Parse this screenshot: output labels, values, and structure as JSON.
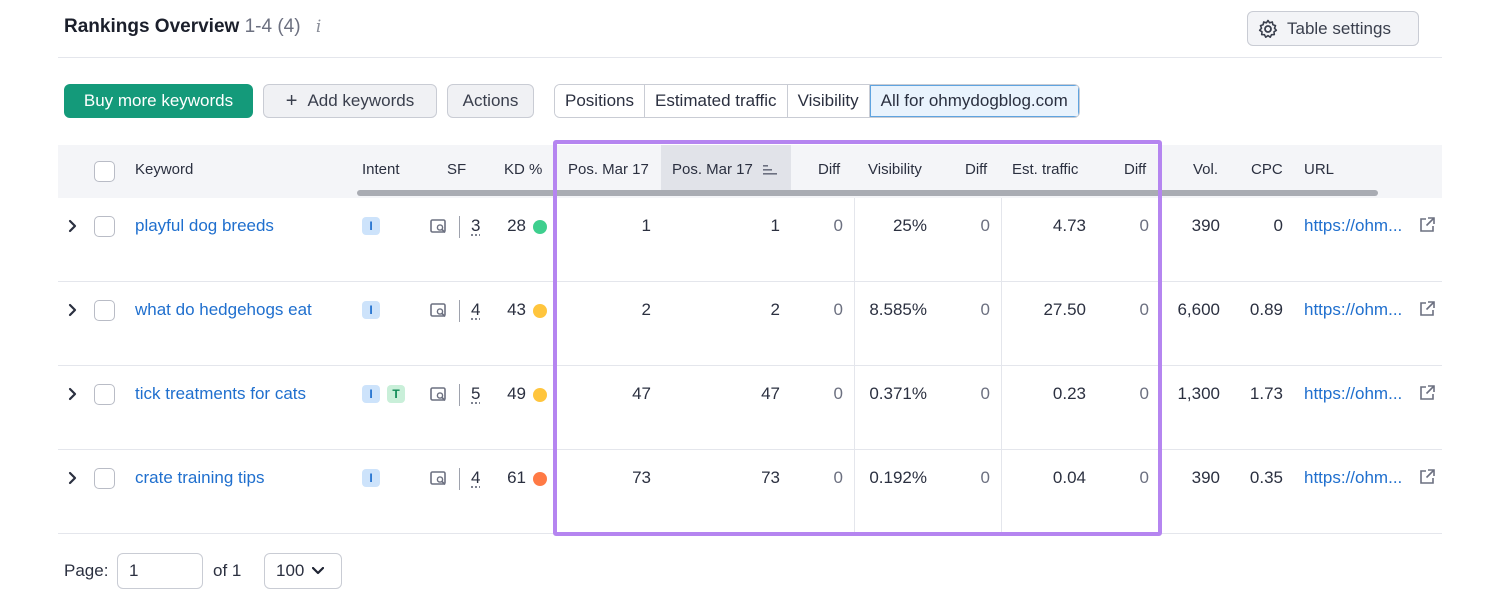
{
  "header": {
    "title": "Rankings Overview",
    "range": "1-4 (4)",
    "info": "i",
    "table_settings": "Table settings"
  },
  "toolbar": {
    "buy_label": "Buy more keywords",
    "add_label": "Add keywords",
    "actions_label": "Actions",
    "segments": [
      "Positions",
      "Estimated traffic",
      "Visibility",
      "All for ohmydogblog.com"
    ],
    "active_segment": "All for ohmydogblog.com"
  },
  "columns": {
    "keyword": "Keyword",
    "intent": "Intent",
    "sf": "SF",
    "kd": "KD %",
    "pos1": "Pos. Mar 17",
    "pos2": "Pos. Mar 17",
    "diff1": "Diff",
    "visibility": "Visibility",
    "diff2": "Diff",
    "est_traffic": "Est. traffic",
    "diff3": "Diff",
    "vol": "Vol.",
    "cpc": "CPC",
    "url": "URL"
  },
  "rows": [
    {
      "keyword": "playful dog breeds",
      "intents": [
        "I"
      ],
      "sf": "3",
      "kd": "28",
      "kd_color": "#3ecf8e",
      "pos1": "1",
      "pos2": "1",
      "diff1": "0",
      "visibility": "25%",
      "diff2": "0",
      "traffic": "4.73",
      "diff3": "0",
      "vol": "390",
      "cpc": "0",
      "url": "https://ohm..."
    },
    {
      "keyword": "what do hedgehogs eat",
      "intents": [
        "I"
      ],
      "sf": "4",
      "kd": "43",
      "kd_color": "#ffc53d",
      "pos1": "2",
      "pos2": "2",
      "diff1": "0",
      "visibility": "8.585%",
      "diff2": "0",
      "traffic": "27.50",
      "diff3": "0",
      "vol": "6,600",
      "cpc": "0.89",
      "url": "https://ohm..."
    },
    {
      "keyword": "tick treatments for cats",
      "intents": [
        "I",
        "T"
      ],
      "sf": "5",
      "kd": "49",
      "kd_color": "#ffc53d",
      "pos1": "47",
      "pos2": "47",
      "diff1": "0",
      "visibility": "0.371%",
      "diff2": "0",
      "traffic": "0.23",
      "diff3": "0",
      "vol": "1,300",
      "cpc": "1.73",
      "url": "https://ohm..."
    },
    {
      "keyword": "crate training tips",
      "intents": [
        "I"
      ],
      "sf": "4",
      "kd": "61",
      "kd_color": "#ff7a45",
      "pos1": "73",
      "pos2": "73",
      "diff1": "0",
      "visibility": "0.192%",
      "diff2": "0",
      "traffic": "0.04",
      "diff3": "0",
      "vol": "390",
      "cpc": "0.35",
      "url": "https://ohm..."
    }
  ],
  "pagination": {
    "page_label": "Page:",
    "page_value": "1",
    "of_label": "of 1",
    "per_page": "100"
  },
  "colors": {
    "accent_green": "#149a7a",
    "highlight_purple": "#b585f0",
    "link_blue": "#1f6fce"
  }
}
